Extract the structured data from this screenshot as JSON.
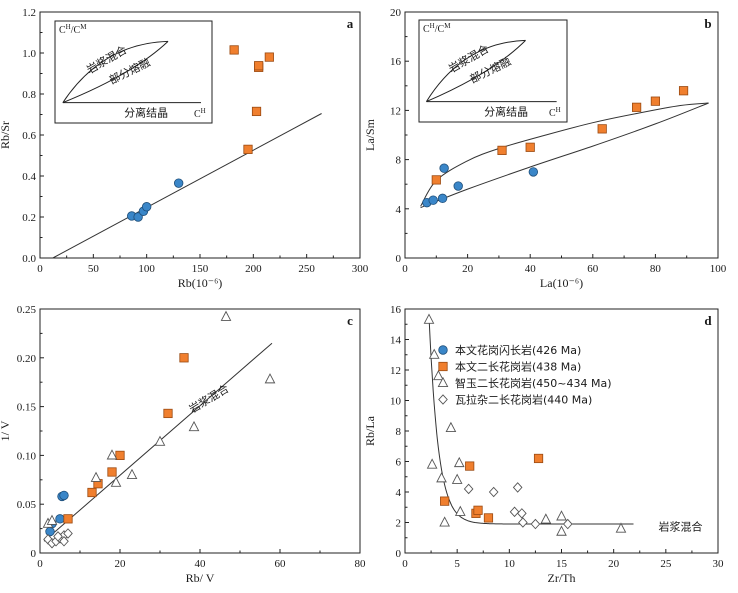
{
  "chart_data": [
    {
      "type": "scatter",
      "panel": "a",
      "xlabel": "Rb(10⁻⁶)",
      "ylabel": "Rb/Sr",
      "xlim": [
        0,
        300
      ],
      "ylim": [
        0,
        1.2
      ],
      "xticks": [
        "0",
        "50",
        "100",
        "150",
        "200",
        "250",
        "300"
      ],
      "yticks": [
        "0.0",
        "0.2",
        "0.4",
        "0.6",
        "0.8",
        "1.0",
        "1.2"
      ],
      "series": [
        {
          "marker": "circle",
          "color": "#3a86c8",
          "points": [
            [
              86,
              0.205
            ],
            [
              92,
              0.2
            ],
            [
              97,
              0.228
            ],
            [
              100,
              0.25
            ],
            [
              130,
              0.365
            ]
          ]
        },
        {
          "marker": "square",
          "color": "#f07f2e",
          "points": [
            [
              182,
              1.015
            ],
            [
              195,
              0.53
            ],
            [
              203,
              0.715
            ],
            [
              205,
              0.93
            ],
            [
              205,
              0.938
            ],
            [
              215,
              0.98
            ]
          ]
        }
      ],
      "trend_line": [
        [
          12,
          0
        ],
        [
          264,
          0.705
        ]
      ],
      "inset": {
        "top_label": "C",
        "top_sup_1": "H",
        "top_sep": "/C",
        "top_sup_2": "M",
        "curve_upper_label": "岩浆混合",
        "curve_lower_label": "部分熔融",
        "line_label": "分离结晶",
        "bottom_label": "C",
        "bottom_sup": "H"
      }
    },
    {
      "type": "scatter",
      "panel": "b",
      "xlabel": "La(10⁻⁶)",
      "ylabel": "La/Sm",
      "xlim": [
        0,
        100
      ],
      "ylim": [
        0,
        20
      ],
      "xticks": [
        "0",
        "20",
        "40",
        "60",
        "80",
        "100"
      ],
      "yticks": [
        "0",
        "4",
        "8",
        "12",
        "16",
        "20"
      ],
      "series": [
        {
          "marker": "circle",
          "color": "#3a86c8",
          "points": [
            [
              7,
              4.5
            ],
            [
              9,
              4.7
            ],
            [
              12,
              4.85
            ],
            [
              12.5,
              7.3
            ],
            [
              17,
              5.85
            ],
            [
              41,
              7.0
            ]
          ]
        },
        {
          "marker": "square",
          "color": "#f07f2e",
          "points": [
            [
              10,
              6.35
            ],
            [
              31,
              8.75
            ],
            [
              40,
              9.0
            ],
            [
              63,
              10.5
            ],
            [
              74,
              12.25
            ],
            [
              80,
              12.75
            ],
            [
              89,
              13.6
            ]
          ]
        }
      ],
      "upper_curve": [
        [
          5,
          4.2
        ],
        [
          10,
          6.3
        ],
        [
          20,
          7.9
        ],
        [
          30,
          8.9
        ],
        [
          45,
          10.0
        ],
        [
          60,
          11.0
        ],
        [
          75,
          11.8
        ],
        [
          88,
          12.4
        ],
        [
          97,
          12.6
        ]
      ],
      "lower_curve": [
        [
          5,
          4.1
        ],
        [
          20,
          5.6
        ],
        [
          40,
          7.4
        ],
        [
          60,
          9.1
        ],
        [
          80,
          10.9
        ],
        [
          97,
          12.6
        ]
      ],
      "inset": {
        "top_label": "C",
        "top_sup_1": "H",
        "top_sep": "/C",
        "top_sup_2": "M",
        "curve_upper_label": "岩浆混合",
        "curve_lower_label": "部分熔融",
        "line_label": "分离结晶",
        "bottom_label": "C",
        "bottom_sup": "H"
      }
    },
    {
      "type": "scatter",
      "panel": "c",
      "xlabel": "Rb/ V",
      "ylabel": "1/ V",
      "xlim": [
        0,
        80
      ],
      "ylim": [
        0,
        0.25
      ],
      "xticks": [
        "0",
        "20",
        "40",
        "60",
        "80"
      ],
      "yticks": [
        "0",
        "0.05",
        "0.10",
        "0.15",
        "0.20",
        "0.25"
      ],
      "series": [
        {
          "marker": "circle",
          "color": "#3a86c8",
          "points": [
            [
              2.5,
              0.022
            ],
            [
              3,
              0.03
            ],
            [
              5,
              0.035
            ],
            [
              5.5,
              0.058
            ],
            [
              6,
              0.059
            ]
          ]
        },
        {
          "marker": "square",
          "color": "#f07f2e",
          "points": [
            [
              7,
              0.035
            ],
            [
              13,
              0.062
            ],
            [
              14.5,
              0.071
            ],
            [
              18,
              0.083
            ],
            [
              20,
              0.1
            ],
            [
              32,
              0.143
            ],
            [
              36,
              0.2
            ]
          ]
        },
        {
          "marker": "triangle",
          "color": "#555555",
          "points": [
            [
              2,
              0.03
            ],
            [
              3,
              0.033
            ],
            [
              14,
              0.077
            ],
            [
              18,
              0.1
            ],
            [
              19,
              0.072
            ],
            [
              23,
              0.08
            ],
            [
              30,
              0.114
            ],
            [
              38.5,
              0.129
            ],
            [
              46.5,
              0.242
            ],
            [
              57.5,
              0.178
            ]
          ]
        },
        {
          "marker": "diamond",
          "color": "#555555",
          "points": [
            [
              2,
              0.014
            ],
            [
              3,
              0.01
            ],
            [
              4,
              0.012
            ],
            [
              5,
              0.015
            ],
            [
              6,
              0.018
            ],
            [
              7,
              0.02
            ],
            [
              6,
              0.012
            ],
            [
              4.5,
              0.017
            ]
          ]
        }
      ],
      "trend_line": [
        [
          1,
          0.012
        ],
        [
          58,
          0.215
        ]
      ],
      "trend_label": "岩浆混合"
    },
    {
      "type": "scatter",
      "panel": "d",
      "xlabel": "Zr/Th",
      "ylabel": "Rb/La",
      "xlim": [
        0,
        30
      ],
      "ylim": [
        0,
        16
      ],
      "xticks": [
        "0",
        "5",
        "10",
        "15",
        "20",
        "25",
        "30"
      ],
      "yticks": [
        "0",
        "2",
        "4",
        "6",
        "8",
        "10",
        "12",
        "14",
        "16"
      ],
      "series": [
        {
          "marker": "square",
          "color": "#f07f2e",
          "points": [
            [
              3.8,
              3.4
            ],
            [
              6.2,
              5.7
            ],
            [
              6.8,
              2.6
            ],
            [
              7,
              2.8
            ],
            [
              8,
              2.3
            ],
            [
              12.8,
              6.2
            ]
          ]
        },
        {
          "marker": "triangle",
          "color": "#555555",
          "points": [
            [
              2.3,
              15.3
            ],
            [
              2.6,
              5.8
            ],
            [
              2.8,
              13.0
            ],
            [
              3.2,
              11.6
            ],
            [
              3.5,
              4.9
            ],
            [
              3.8,
              2.0
            ],
            [
              4.4,
              8.2
            ],
            [
              5.2,
              5.9
            ],
            [
              5,
              4.8
            ],
            [
              5.3,
              2.7
            ],
            [
              13.5,
              2.2
            ],
            [
              15,
              2.4
            ],
            [
              15,
              1.4
            ],
            [
              20.7,
              1.6
            ]
          ]
        },
        {
          "marker": "diamond",
          "color": "#555555",
          "points": [
            [
              6.1,
              4.2
            ],
            [
              8.5,
              4.0
            ],
            [
              10.5,
              2.7
            ],
            [
              10.8,
              4.3
            ],
            [
              11.2,
              2.6
            ],
            [
              11.3,
              2.0
            ],
            [
              12.5,
              1.9
            ],
            [
              15.6,
              1.9
            ]
          ]
        }
      ],
      "hyperbola": {
        "a": 1.6,
        "b": 0.23,
        "c": 1.9,
        "x_from": 2.3,
        "x_to": 22
      },
      "curve_label": "岩浆混合",
      "legend": {
        "placement": "top-right",
        "entries": [
          {
            "marker": "circle",
            "color": "#3a86c8",
            "label": "本文花岗闪长岩(426 Ma)"
          },
          {
            "marker": "square",
            "color": "#f07f2e",
            "label": "本文二长花岗岩(438 Ma)"
          },
          {
            "marker": "triangle",
            "color": "#555555",
            "label": "智玉二长花岗岩(450~434 Ma)"
          },
          {
            "marker": "diamond",
            "color": "#555555",
            "label": "瓦拉杂二长花岗岩(440 Ma)"
          }
        ]
      }
    }
  ]
}
